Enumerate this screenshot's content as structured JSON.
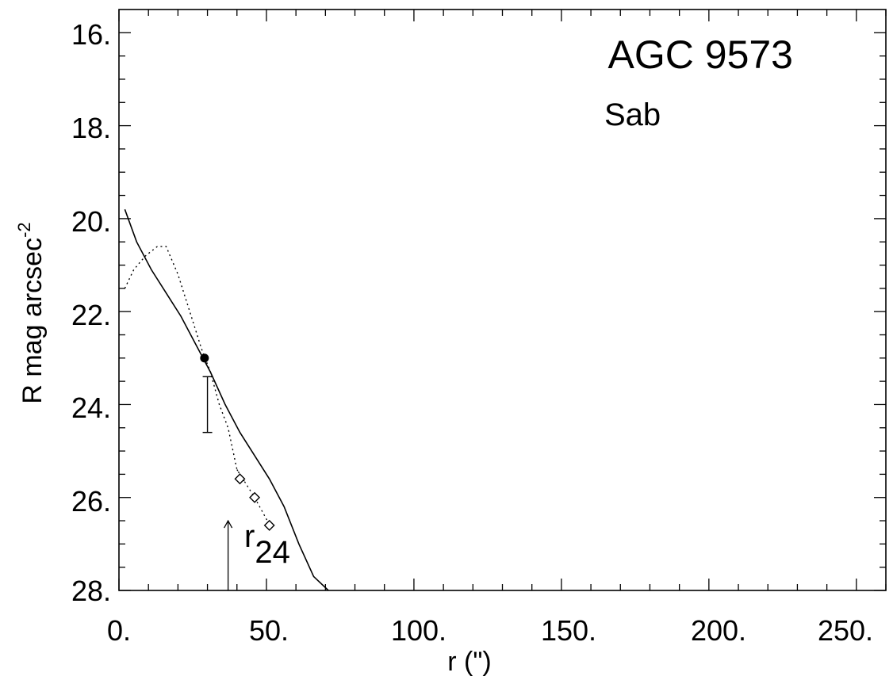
{
  "chart_data": {
    "type": "line",
    "title": "",
    "xlabel": "r (\")",
    "ylabel": "R mag arcsec",
    "ylabel_superscript": "-2",
    "xlim": [
      0,
      260
    ],
    "ylim": [
      28,
      15.5
    ],
    "y_inverted": true,
    "grid": false,
    "x_ticks": [
      {
        "value": 0,
        "label": "0."
      },
      {
        "value": 50,
        "label": "50."
      },
      {
        "value": 100,
        "label": "100."
      },
      {
        "value": 150,
        "label": "150."
      },
      {
        "value": 200,
        "label": "200."
      },
      {
        "value": 250,
        "label": "250."
      }
    ],
    "x_minor_step": 10,
    "y_ticks": [
      {
        "value": 16,
        "label": "16."
      },
      {
        "value": 18,
        "label": "18."
      },
      {
        "value": 20,
        "label": "20."
      },
      {
        "value": 22,
        "label": "22."
      },
      {
        "value": 24,
        "label": "24."
      },
      {
        "value": 26,
        "label": "26."
      },
      {
        "value": 28,
        "label": "28."
      }
    ],
    "y_minor_step": 0.5,
    "series": [
      {
        "style": "solid",
        "x": [
          2,
          6,
          11,
          16,
          21,
          26,
          31,
          36,
          41,
          46,
          51,
          56,
          61,
          66,
          71
        ],
        "y": [
          19.8,
          20.5,
          21.1,
          21.6,
          22.1,
          22.7,
          23.3,
          24.0,
          24.6,
          25.1,
          25.6,
          26.2,
          27.0,
          27.7,
          28.0
        ]
      },
      {
        "style": "dotted",
        "x": [
          2,
          5,
          9,
          13,
          16,
          20,
          24,
          28,
          31,
          34,
          37,
          40,
          43
        ],
        "y": [
          21.5,
          21.1,
          20.8,
          20.6,
          20.6,
          21.2,
          22.0,
          22.8,
          23.3,
          24.0,
          24.5,
          25.4,
          25.7
        ]
      }
    ],
    "annotations": {
      "galaxy_id": "AGC  9573",
      "morph_type": "Sab",
      "r24_label": "r",
      "r24_subscript": "24",
      "r24_arrow": {
        "x": 37,
        "y_from": 28.0,
        "y_to": 26.5
      },
      "filled_point": {
        "x": 29,
        "y": 23.0
      },
      "error_bar": {
        "x": 30,
        "y_low": 23.4,
        "y_high": 24.6
      },
      "open_diamonds": [
        {
          "x": 41,
          "y": 25.6
        },
        {
          "x": 46,
          "y": 26.0
        },
        {
          "x": 51,
          "y": 26.6
        }
      ],
      "diamond_dotted_link": {
        "x": [
          40,
          46,
          52
        ],
        "y": [
          25.4,
          26.0,
          26.7
        ]
      }
    }
  }
}
